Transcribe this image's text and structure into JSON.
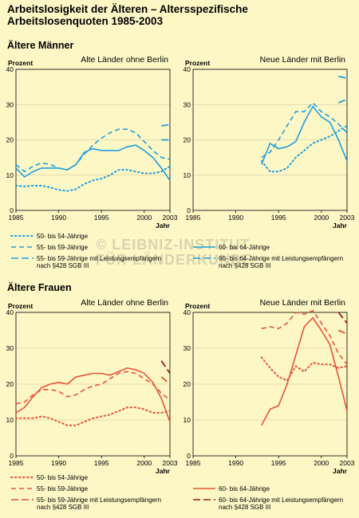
{
  "title_line1": "Arbeitslosigkeit der Älteren – Altersspezifische",
  "title_line2": "Arbeitslosenquoten 1985-2003",
  "section_men": "Ältere Männer",
  "section_women": "Ältere Frauen",
  "watermark_line1": "© LEIBNIZ-INSTITUT",
  "watermark_line2": "FÜR LÄNDERKUNDE",
  "colors": {
    "men": "#1e9fe0",
    "women": "#e8543c",
    "women_dark": "#a01c14"
  },
  "chart_data": [
    {
      "id": "m_west",
      "type": "line",
      "title": "Alte Länder ohne Berlin",
      "ylabel": "Prozent",
      "xlabel": "Jahr",
      "xlim": [
        1985,
        2003
      ],
      "ylim": [
        0,
        40
      ],
      "xticks": [
        "1985",
        "1990",
        "1995",
        "2000",
        "2003"
      ],
      "yticks": [
        "0",
        "10",
        "20",
        "30",
        "40"
      ],
      "series": [
        {
          "name": "50- bis 54-Jährige",
          "style": "dotted",
          "x": [
            1985,
            1986,
            1987,
            1988,
            1989,
            1990,
            1991,
            1992,
            1993,
            1994,
            1995,
            1996,
            1997,
            1998,
            1999,
            2000,
            2001,
            2002,
            2003
          ],
          "y": [
            7,
            6.8,
            7,
            7,
            6.5,
            5.8,
            5.5,
            6,
            7.5,
            8.5,
            9,
            10,
            11.5,
            11.5,
            11,
            10.5,
            10.5,
            11,
            12.5
          ]
        },
        {
          "name": "55- bis 59-Jährige",
          "style": "dashed",
          "x": [
            1985,
            1986,
            1987,
            1988,
            1989,
            1990,
            1991,
            1992,
            1993,
            1994,
            1995,
            1996,
            1997,
            1998,
            1999,
            2000,
            2001,
            2002,
            2003
          ],
          "y": [
            13,
            11,
            12.5,
            13.5,
            13,
            12,
            11.5,
            13,
            16,
            18.5,
            20.5,
            22,
            23,
            23,
            22,
            19.5,
            17,
            15,
            14.5
          ]
        },
        {
          "name": "55- bis 59-Jährige mit Leistungsempfängern nach §428 SGB III",
          "style": "longdash",
          "x": [
            2002,
            2003
          ],
          "y": [
            24,
            24.3
          ]
        },
        {
          "name": "60- bis 64-Jährige",
          "style": "solid",
          "x": [
            1985,
            1986,
            1987,
            1988,
            1989,
            1990,
            1991,
            1992,
            1993,
            1994,
            1995,
            1996,
            1997,
            1998,
            1999,
            2000,
            2001,
            2002,
            2003
          ],
          "y": [
            12,
            9.5,
            11,
            12,
            12,
            12,
            11.5,
            13,
            16.5,
            17.5,
            17,
            17,
            17,
            18,
            18.5,
            17,
            15,
            12,
            8.5
          ]
        },
        {
          "name": "60- bis 64-Jährige mit Leistungsempfängern nach §428 SGB III",
          "style": "longdash",
          "x": [
            2002,
            2003
          ],
          "y": [
            20,
            20
          ]
        }
      ]
    },
    {
      "id": "m_east",
      "type": "line",
      "title": "Neue Länder mit Berlin",
      "ylabel": "Prozent",
      "xlabel": "Jahr",
      "xlim": [
        1985,
        2003
      ],
      "ylim": [
        0,
        40
      ],
      "xticks": [
        "1985",
        "1990",
        "1995",
        "2000",
        "2003"
      ],
      "yticks": [
        "0",
        "10",
        "20",
        "30",
        "40"
      ],
      "series": [
        {
          "name": "50- bis 54-Jährige",
          "style": "dotted",
          "x": [
            1993,
            1994,
            1995,
            1996,
            1997,
            1998,
            1999,
            2000,
            2001,
            2002,
            2003
          ],
          "y": [
            14,
            11,
            11,
            12,
            15,
            17,
            19,
            20,
            21,
            22.5,
            24
          ]
        },
        {
          "name": "55- bis 59-Jährige",
          "style": "dashed",
          "x": [
            1993,
            1994,
            1995,
            1996,
            1997,
            1998,
            1999,
            2000,
            2001,
            2002,
            2003
          ],
          "y": [
            15,
            16.5,
            20,
            24,
            28,
            28,
            30.5,
            28,
            26.5,
            24.5,
            22
          ]
        },
        {
          "name": "55- bis 59-Jährige mit Leistungsempfängern nach §428 SGB III",
          "style": "longdash",
          "x": [
            2002,
            2003
          ],
          "y": [
            30.5,
            31.5
          ]
        },
        {
          "name": "60- bis 64-Jährige",
          "style": "solid",
          "x": [
            1993,
            1994,
            1995,
            1996,
            1997,
            1998,
            1999,
            2000,
            2001,
            2002,
            2003
          ],
          "y": [
            13,
            19,
            17.5,
            18,
            19.5,
            25,
            29.5,
            26.5,
            25,
            20,
            14
          ]
        },
        {
          "name": "60- bis 64-Jährige mit Leistungsempfängern nach §428 SGB III",
          "style": "longdash",
          "x": [
            2002,
            2003
          ],
          "y": [
            38,
            37.5
          ]
        }
      ]
    },
    {
      "id": "f_west",
      "type": "line",
      "title": "Alte Länder ohne Berlin",
      "ylabel": "Prozent",
      "xlabel": "Jahr",
      "xlim": [
        1985,
        2003
      ],
      "ylim": [
        0,
        40
      ],
      "xticks": [
        "1985",
        "1990",
        "1995",
        "2000",
        "2003"
      ],
      "yticks": [
        "0",
        "10",
        "20",
        "30",
        "40"
      ],
      "series": [
        {
          "name": "50- bis 54-Jährige",
          "style": "dotted",
          "x": [
            1985,
            1986,
            1987,
            1988,
            1989,
            1990,
            1991,
            1992,
            1993,
            1994,
            1995,
            1996,
            1997,
            1998,
            1999,
            2000,
            2001,
            2002,
            2003
          ],
          "y": [
            10.5,
            10.5,
            10.5,
            11,
            10.5,
            9.5,
            8.5,
            8.5,
            9.5,
            10.5,
            11,
            11.5,
            12.5,
            13.5,
            13.5,
            13,
            12,
            12,
            12.5
          ]
        },
        {
          "name": "55- bis 59-Jährige",
          "style": "dashed",
          "x": [
            1985,
            1986,
            1987,
            1988,
            1989,
            1990,
            1991,
            1992,
            1993,
            1994,
            1995,
            1996,
            1997,
            1998,
            1999,
            2000,
            2001,
            2002,
            2003
          ],
          "y": [
            14.5,
            15,
            17,
            18.5,
            18.5,
            18,
            16.5,
            17,
            18.5,
            19.5,
            20,
            21.5,
            23,
            23.5,
            23,
            21.5,
            20,
            17.5,
            15.5
          ]
        },
        {
          "name": "55- bis 59-Jährige mit Leistungsempfängern nach §428 SGB III",
          "style": "longdash",
          "x": [
            2002,
            2003
          ],
          "y": [
            22,
            20
          ]
        },
        {
          "name": "60- bis 64-Jährige",
          "style": "solid",
          "x": [
            1985,
            1986,
            1987,
            1988,
            1989,
            1990,
            1991,
            1992,
            1993,
            1994,
            1995,
            1996,
            1997,
            1998,
            1999,
            2000,
            2001,
            2002,
            2003
          ],
          "y": [
            12,
            13.5,
            16.5,
            19,
            20,
            20.5,
            20,
            22,
            22.5,
            23,
            23,
            22.5,
            23.5,
            24.5,
            24,
            23,
            20.5,
            16,
            9.5
          ]
        },
        {
          "name": "60- bis 64-Jährige mit Leistungsempfängern nach §428 SGB III",
          "style": "longdash",
          "x": [
            2002,
            2003
          ],
          "y": [
            26.5,
            23
          ]
        }
      ]
    },
    {
      "id": "f_east",
      "type": "line",
      "title": "Neue Länder mit Berlin",
      "ylabel": "Prozent",
      "xlabel": "Jahr",
      "xlim": [
        1985,
        2003
      ],
      "ylim": [
        0,
        40
      ],
      "xticks": [
        "1985",
        "1990",
        "1995",
        "2000",
        "2003"
      ],
      "yticks": [
        "0",
        "10",
        "20",
        "30",
        "40"
      ],
      "series": [
        {
          "name": "50- bis 54-Jährige",
          "style": "dotted",
          "x": [
            1993,
            1994,
            1995,
            1996,
            1997,
            1998,
            1999,
            2000,
            2001,
            2002,
            2003
          ],
          "y": [
            27.5,
            24.5,
            22,
            21,
            25,
            23.5,
            26,
            25.5,
            25.5,
            24.5,
            25
          ]
        },
        {
          "name": "55- bis 59-Jährige",
          "style": "dashed",
          "x": [
            1993,
            1994,
            1995,
            1996,
            1997,
            1998,
            1999,
            2000,
            2001,
            2002,
            2003
          ],
          "y": [
            35.5,
            36,
            35.5,
            37,
            40,
            39.5,
            40.5,
            37,
            33.5,
            28.5,
            25.5
          ]
        },
        {
          "name": "55- bis 59-Jährige mit Leistungsempfängern nach §428 SGB III",
          "style": "longdash",
          "x": [
            2002,
            2003
          ],
          "y": [
            35,
            34
          ]
        },
        {
          "name": "60- bis 64-Jährige",
          "style": "solid",
          "x": [
            1993,
            1994,
            1995,
            1996,
            1997,
            1998,
            1999,
            2000,
            2001,
            2002,
            2003
          ],
          "y": [
            8.5,
            13,
            14,
            20,
            28,
            36,
            38.5,
            35,
            31,
            22,
            12.5
          ]
        },
        {
          "name": "60- bis 64-Jährige mit Leistungsempfängern nach §428 SGB III",
          "style": "longdash",
          "x": [
            2002,
            2003
          ],
          "y": [
            40,
            37
          ]
        }
      ]
    }
  ],
  "legend_men": [
    {
      "label": "50- bis 54-Jährige",
      "style": "dotted"
    },
    {
      "label": "55- bis 59-Jährige",
      "style": "dashed"
    },
    {
      "label": "55- bis 59-Jährige mit Leistungsempfängern",
      "label2": "nach §428 SGB III",
      "style": "longdash"
    },
    {
      "label": "60- bis 64-Jährige",
      "style": "solid"
    },
    {
      "label": "60- bis 64-Jährige mit Leistungsempfängern",
      "label2": "nach §428 SGB III",
      "style": "longdash"
    }
  ],
  "legend_women": [
    {
      "label": "50- bis 54-Jährige",
      "style": "dotted"
    },
    {
      "label": "55- bis 59-Jährige",
      "style": "dashed"
    },
    {
      "label": "55- bis 59-Jährige mit Leistungsempfängern",
      "label2": "nach §428 SGB III",
      "style": "longdash"
    },
    {
      "label": "60- bis 64-Jährige",
      "style": "solid"
    },
    {
      "label": "60- bis 64-Jährige mit Leistungsempfängern",
      "label2": "nach §428 SGB III",
      "style": "longdash"
    }
  ]
}
